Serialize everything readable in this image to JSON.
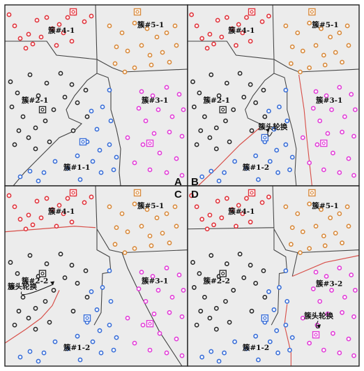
{
  "figure": {
    "panels": [
      {
        "letter": "A",
        "labels": [
          "簇#4-1",
          "簇#5-1",
          "簇#2-1",
          "簇#3-1",
          "簇#1-1"
        ],
        "annotation": ""
      },
      {
        "letter": "B",
        "labels": [
          "簇#4-1",
          "簇#5-1",
          "簇#2-1",
          "簇#3-1",
          "簇#1-2"
        ],
        "annotation": "簇头轮换"
      },
      {
        "letter": "C",
        "labels": [
          "簇#4-1",
          "簇#5-1",
          "簇#2-2",
          "簇#3-1",
          "簇#1-2"
        ],
        "annotation": "簇头轮换"
      },
      {
        "letter": "D",
        "labels": [
          "簇#4-1",
          "簇#5-1",
          "簇#2-2",
          "簇#3-2",
          "簇#1-2"
        ],
        "annotation": "簇头轮换"
      }
    ],
    "colors": {
      "red": "#e0343c",
      "orange": "#d88a3c",
      "black": "#2a2a2a",
      "blue": "#3a6fd8",
      "magenta": "#e23fd8",
      "old_boundary": "#444444",
      "new_boundary": "#d8504a",
      "background": "#ececec"
    }
  }
}
